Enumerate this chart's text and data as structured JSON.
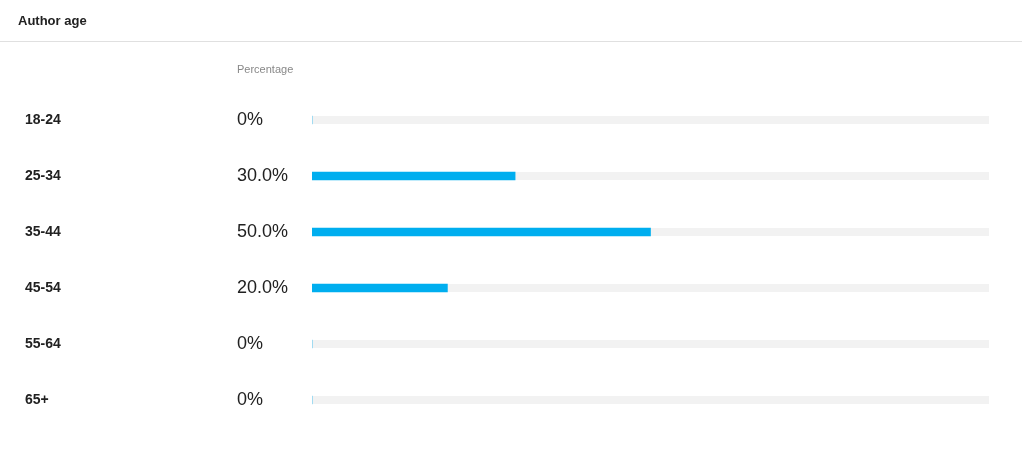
{
  "chart_data": {
    "type": "bar",
    "orientation": "horizontal",
    "title": "Author age",
    "xlabel": "Percentage",
    "categories": [
      "18-24",
      "25-34",
      "35-44",
      "45-54",
      "55-64",
      "65+"
    ],
    "values": [
      0,
      30,
      50,
      20,
      0,
      0
    ],
    "value_labels": [
      "0%",
      "30.0%",
      "50.0%",
      "20.0%",
      "0%",
      "0%"
    ],
    "color": "#00aeef",
    "xlim": [
      0,
      100
    ],
    "tick_labels": "y",
    "grid": false,
    "legend": false
  }
}
